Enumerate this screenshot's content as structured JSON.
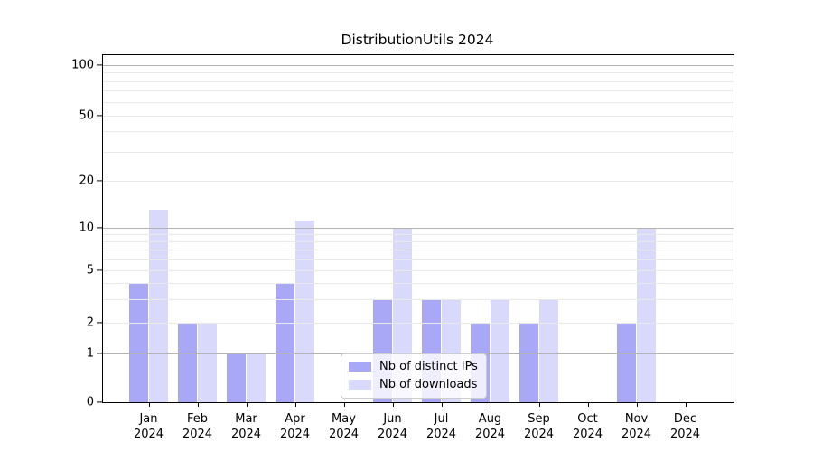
{
  "chart_data": {
    "type": "bar",
    "title": "DistributionUtils 2024",
    "categories": [
      "Jan 2024",
      "Feb 2024",
      "Mar 2024",
      "Apr 2024",
      "May 2024",
      "Jun 2024",
      "Jul 2024",
      "Aug 2024",
      "Sep 2024",
      "Oct 2024",
      "Nov 2024",
      "Dec 2024"
    ],
    "series": [
      {
        "name": "Nb of distinct IPs",
        "color": "#a9a8f7",
        "values": [
          4,
          2,
          1,
          4,
          0,
          3,
          3,
          2,
          2,
          0,
          2,
          0
        ]
      },
      {
        "name": "Nb of downloads",
        "color": "#d9d9fb",
        "values": [
          13,
          2,
          1,
          11,
          0,
          10,
          3,
          3,
          3,
          0,
          10,
          0
        ]
      }
    ],
    "xlabel": "",
    "ylabel": "",
    "yscale": "symlog-like (linear 0-1, log above)",
    "yticks": [
      0,
      1,
      2,
      5,
      10,
      20,
      50,
      100
    ],
    "ylim": [
      0,
      110
    ],
    "grid": {
      "major": [
        1,
        10,
        100
      ],
      "minor": [
        2,
        3,
        4,
        5,
        6,
        7,
        8,
        9,
        20,
        30,
        40,
        50,
        60,
        70,
        80,
        90
      ]
    },
    "legend_position": "lower center"
  },
  "colors": {
    "bar_distinct_ips": "#a9a8f7",
    "bar_downloads": "#d9d9fb",
    "grid_major": "#b3b3b3",
    "grid_minor": "#e9e9e9",
    "axis": "#000000",
    "text": "#000000",
    "legend_border": "#cccccc",
    "background": "#ffffff"
  }
}
